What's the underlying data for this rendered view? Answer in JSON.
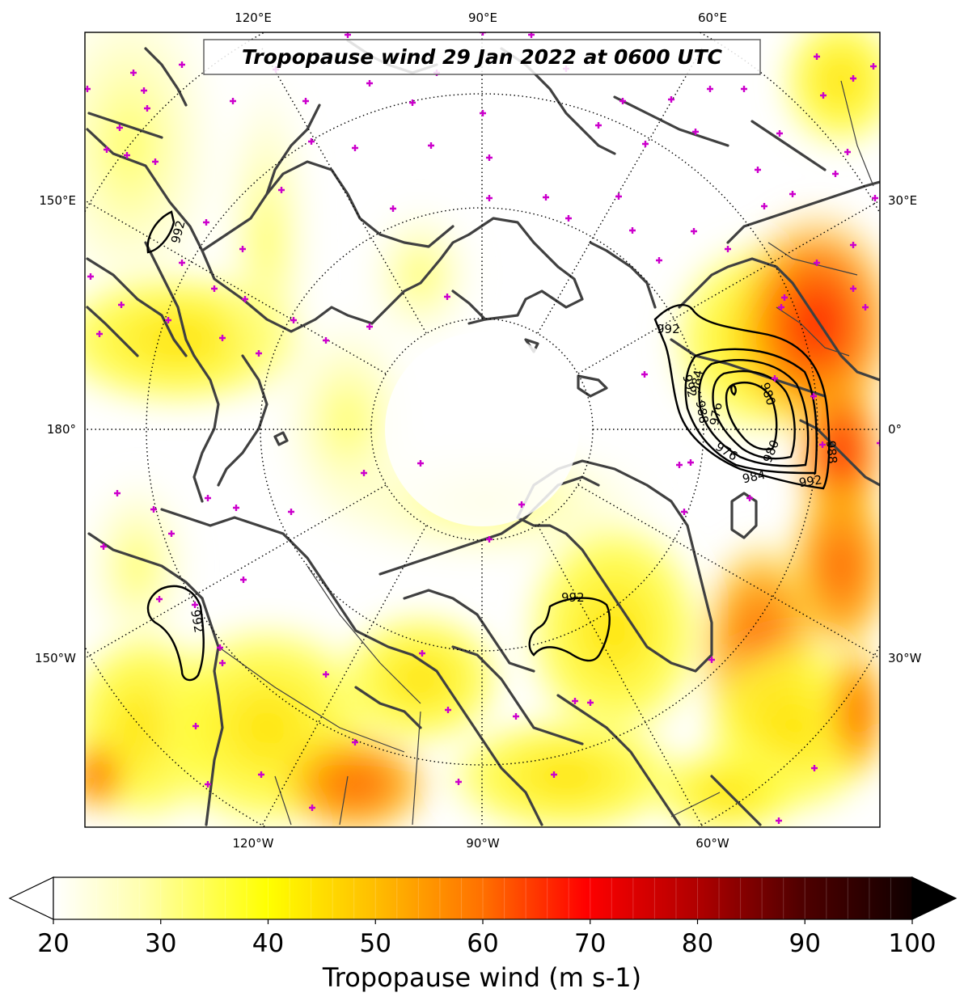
{
  "title": "Tropopause wind 29 Jan 2022 at 0600 UTC",
  "lon_labels": {
    "top": [
      "120°E",
      "90°E",
      "60°E"
    ],
    "bottom": [
      "120°W",
      "90°W",
      "60°W"
    ],
    "left": [
      "150°E",
      "180°",
      "150°W"
    ],
    "right": [
      "30°E",
      "0°",
      "30°W"
    ]
  },
  "contour_labels": [
    "992",
    "992",
    "992",
    "984",
    "976",
    "980",
    "976",
    "980",
    "984",
    "988",
    "988",
    "992",
    "992",
    "992"
  ],
  "colorbar": {
    "label": "Tropopause wind (m s-1)",
    "ticks": [
      "20",
      "30",
      "40",
      "50",
      "60",
      "70",
      "80",
      "90",
      "100"
    ],
    "min": 20,
    "max": 100,
    "extend": "both",
    "colors": [
      "#ffffff",
      "#ffffa0",
      "#ffff00",
      "#ffd000",
      "#ff8000",
      "#ff0000",
      "#b00000",
      "#500000",
      "#000000"
    ]
  },
  "map": {
    "projection": "north-polar-stereographic",
    "field": "tropopause wind speed (filled)",
    "contours": "mean sea level pressure (hPa)",
    "marker": "magenta plus",
    "marker_color": "#cc00cc",
    "coast_color": "#404040"
  }
}
